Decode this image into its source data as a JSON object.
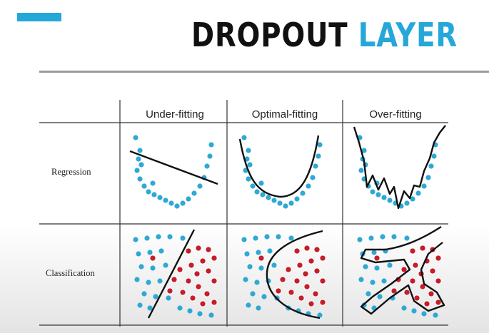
{
  "slide": {
    "title_part1": "DROPOUT",
    "title_part2": "LAYER",
    "accent_color": "#25a7d9",
    "title_color": "#111111"
  },
  "table": {
    "columns": [
      "Under-fitting",
      "Optimal-fitting",
      "Over-fitting"
    ],
    "rows": [
      "Regression",
      "Classification"
    ]
  },
  "colors": {
    "class_a_points": "#2ea9d3",
    "class_b_points": "#c51e2b",
    "model_curve": "#111111"
  }
}
